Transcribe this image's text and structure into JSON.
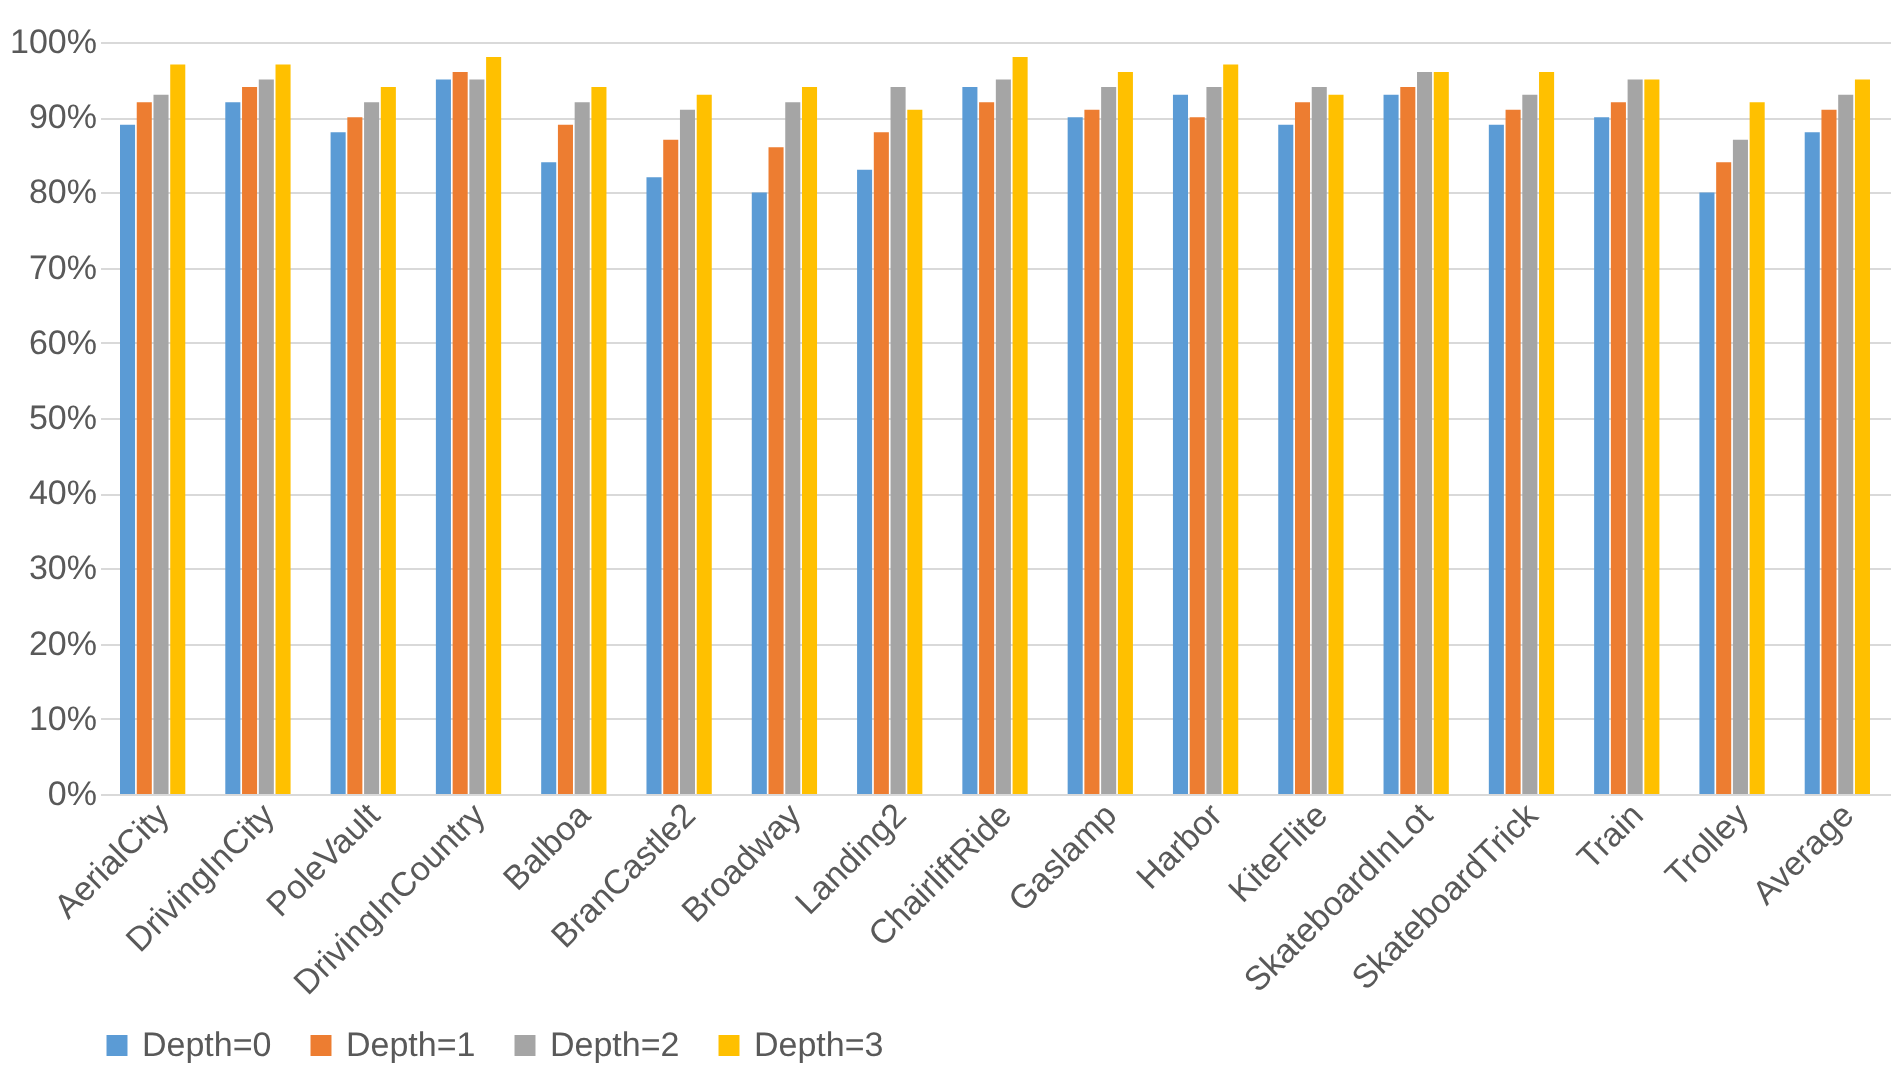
{
  "chart_data": {
    "type": "bar",
    "categories": [
      "AerialCity",
      "DrivingInCity",
      "PoleVault",
      "DrivingInCountry",
      "Balboa",
      "BranCastle2",
      "Broadway",
      "Landing2",
      "ChairliftRide",
      "Gaslamp",
      "Harbor",
      "KiteFlite",
      "SkateboardInLot",
      "SkateboardTrick",
      "Train",
      "Trolley",
      "Average"
    ],
    "series": [
      {
        "name": "Depth=0",
        "color": "#5b9bd5",
        "values": [
          89,
          92,
          88,
          95,
          84,
          82,
          80,
          83,
          94,
          90,
          93,
          89,
          93,
          89,
          90,
          80,
          88
        ]
      },
      {
        "name": "Depth=1",
        "color": "#ed7d31",
        "values": [
          92,
          94,
          90,
          96,
          89,
          87,
          86,
          88,
          92,
          91,
          90,
          92,
          94,
          91,
          92,
          84,
          91
        ]
      },
      {
        "name": "Depth=2",
        "color": "#a5a5a5",
        "values": [
          93,
          95,
          92,
          95,
          92,
          91,
          92,
          94,
          95,
          94,
          94,
          94,
          96,
          93,
          95,
          87,
          93
        ]
      },
      {
        "name": "Depth=3",
        "color": "#ffc000",
        "values": [
          97,
          97,
          94,
          98,
          94,
          93,
          94,
          91,
          98,
          96,
          97,
          93,
          96,
          96,
          95,
          92,
          95
        ]
      }
    ],
    "ylim": [
      0,
      100
    ],
    "yticks": [
      {
        "value": 0,
        "label": "0%"
      },
      {
        "value": 10,
        "label": "10%"
      },
      {
        "value": 20,
        "label": "20%"
      },
      {
        "value": 30,
        "label": "30%"
      },
      {
        "value": 40,
        "label": "40%"
      },
      {
        "value": 50,
        "label": "50%"
      },
      {
        "value": 60,
        "label": "60%"
      },
      {
        "value": 70,
        "label": "70%"
      },
      {
        "value": 80,
        "label": "80%"
      },
      {
        "value": 90,
        "label": "90%"
      },
      {
        "value": 100,
        "label": "100%"
      }
    ],
    "grid": "y",
    "legend": "bottom"
  }
}
